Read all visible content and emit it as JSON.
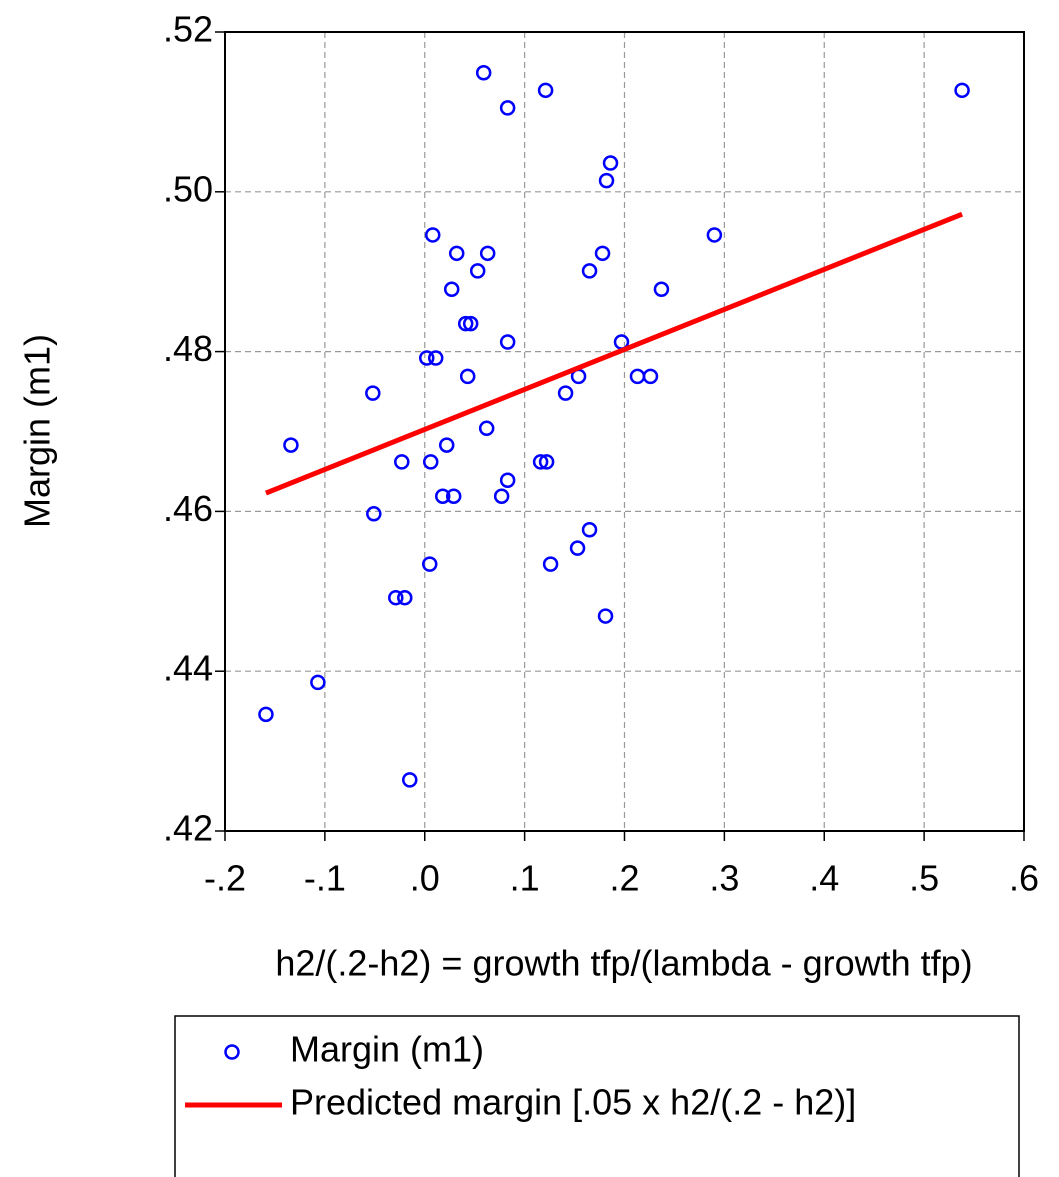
{
  "chart_data": {
    "type": "scatter",
    "x_label": "h2/(.2-h2) = growth tfp/(lambda - growth tfp)",
    "y_label": "Margin (m1)",
    "xlim": [
      -0.2,
      0.6
    ],
    "ylim": [
      0.42,
      0.52
    ],
    "xticks": [
      {
        "value": -0.2,
        "label": "-.2"
      },
      {
        "value": -0.1,
        "label": "-.1"
      },
      {
        "value": 0,
        "label": ".0"
      },
      {
        "value": 0.1,
        "label": ".1"
      },
      {
        "value": 0.2,
        "label": ".2"
      },
      {
        "value": 0.3,
        "label": ".3"
      },
      {
        "value": 0.4,
        "label": ".4"
      },
      {
        "value": 0.5,
        "label": ".5"
      },
      {
        "value": 0.6,
        "label": ".6"
      }
    ],
    "yticks": [
      {
        "value": 0.42,
        "label": ".42"
      },
      {
        "value": 0.44,
        "label": ".44"
      },
      {
        "value": 0.46,
        "label": ".46"
      },
      {
        "value": 0.48,
        "label": ".48"
      },
      {
        "value": 0.5,
        "label": ".50"
      },
      {
        "value": 0.52,
        "label": ".52"
      }
    ],
    "grid": true,
    "legend": "bottom",
    "series": [
      {
        "name": "Margin (m1)",
        "type": "scatter",
        "color": "#0000ff",
        "x": [
          0.059,
          0.121,
          0.083,
          0.538,
          0.186,
          0.182,
          0.008,
          0.29,
          0.032,
          0.063,
          0.178,
          0.053,
          0.165,
          0.027,
          0.237,
          0.041,
          0.046,
          0.083,
          0.197,
          0.002,
          0.011,
          -0.052,
          0.141,
          0.043,
          0.154,
          0.213,
          0.226,
          -0.134,
          0.022,
          0.062,
          -0.023,
          0.006,
          0.116,
          0.122,
          0.018,
          0.029,
          0.077,
          0.083,
          -0.051,
          0.165,
          0.153,
          0.005,
          0.126,
          -0.029,
          -0.02,
          0.181,
          -0.107,
          -0.159,
          -0.015
        ],
        "values": [
          0.5149,
          0.5127,
          0.5105,
          0.5127,
          0.5036,
          0.5014,
          0.4946,
          0.4946,
          0.4923,
          0.4923,
          0.4923,
          0.4901,
          0.4901,
          0.4878,
          0.4878,
          0.4835,
          0.4835,
          0.4812,
          0.4812,
          0.4792,
          0.4792,
          0.4748,
          0.4748,
          0.4769,
          0.4769,
          0.4769,
          0.4769,
          0.4683,
          0.4683,
          0.4704,
          0.4662,
          0.4662,
          0.4662,
          0.4662,
          0.4619,
          0.4619,
          0.4619,
          0.4639,
          0.4597,
          0.4577,
          0.4554,
          0.4534,
          0.4534,
          0.4492,
          0.4492,
          0.4469,
          0.4386,
          0.4346,
          0.4264
        ]
      },
      {
        "name": "Predicted margin [.05 x h2/(.2 - h2)]",
        "type": "line",
        "color": "#ff0000",
        "x": [
          -0.159,
          0.538
        ],
        "values": [
          0.4623,
          0.4972
        ]
      }
    ]
  }
}
